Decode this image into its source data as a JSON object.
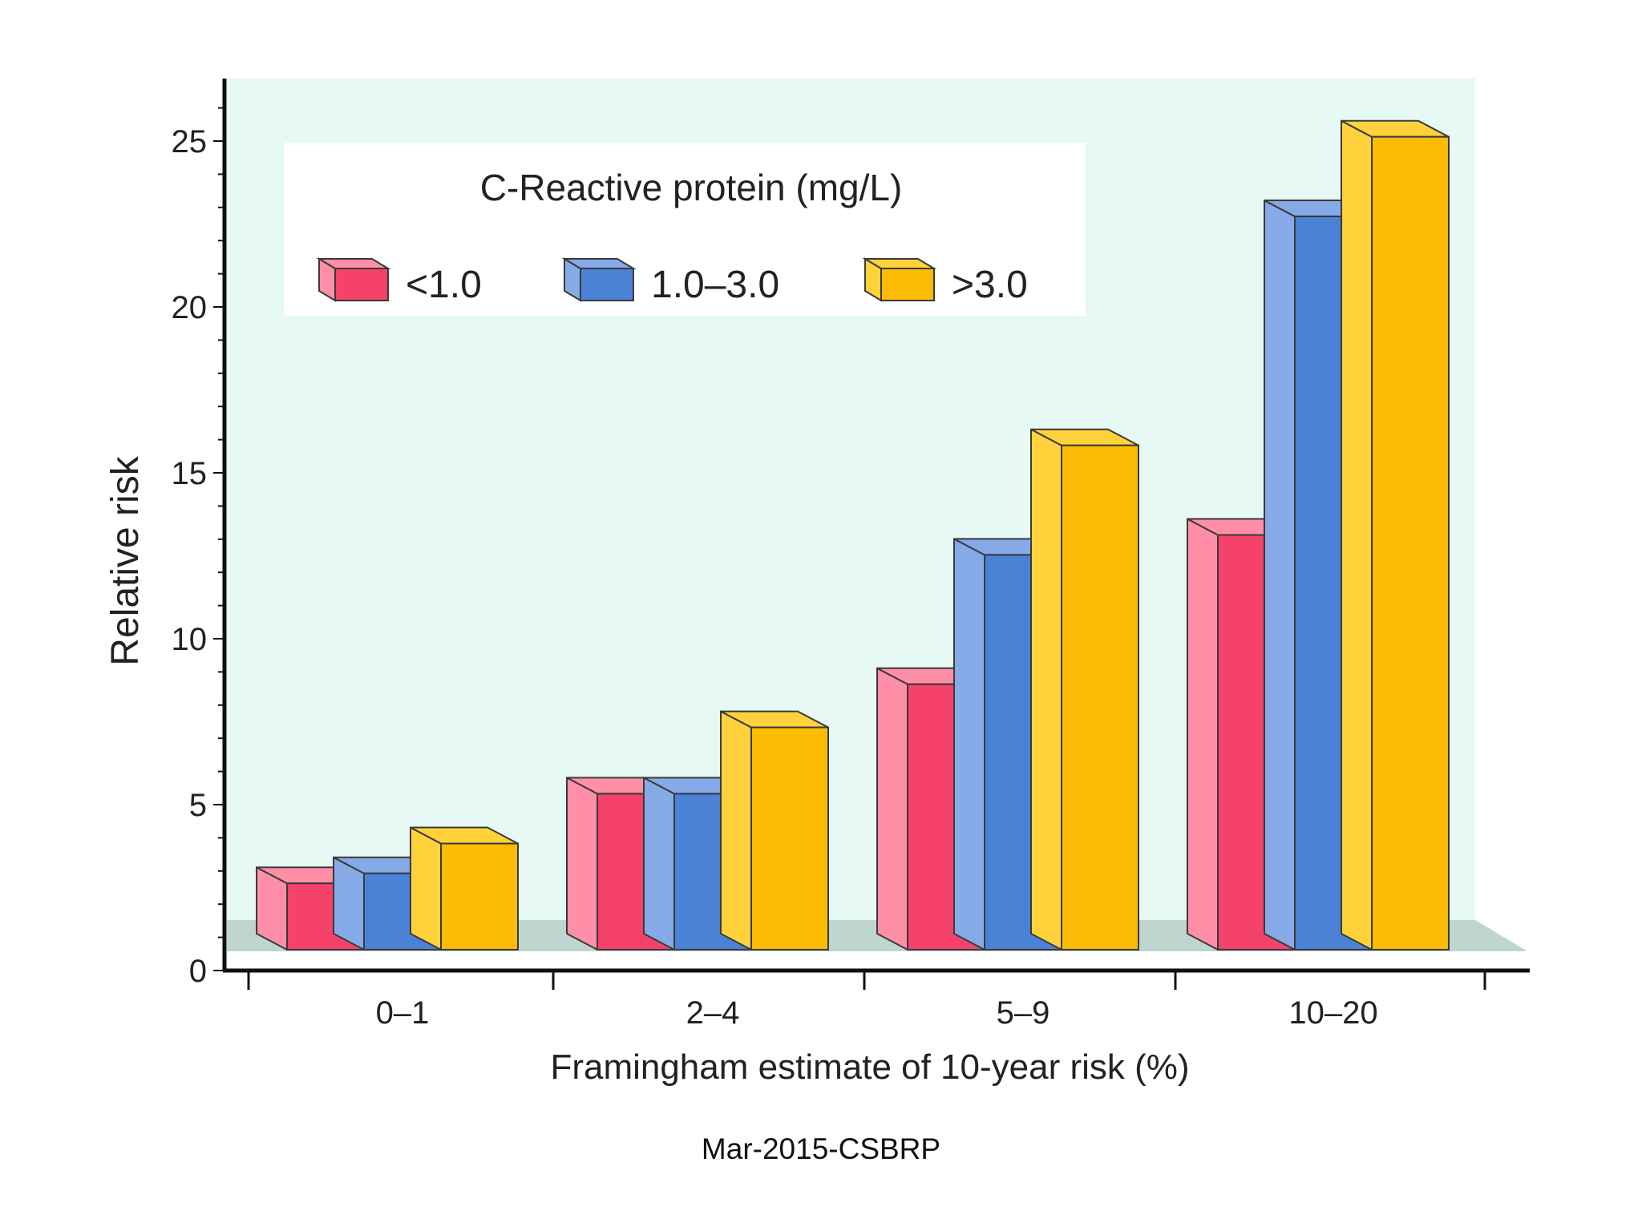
{
  "chart_data": {
    "type": "bar",
    "style": "3d-grouped",
    "categories": [
      "0–1",
      "2–4",
      "5–9",
      "10–20"
    ],
    "series": [
      {
        "name": "<1.0",
        "values": [
          2.0,
          4.7,
          8.0,
          12.5
        ],
        "color": "#f5426b",
        "top_color": "#ff8fa6"
      },
      {
        "name": "1.0–3.0",
        "values": [
          2.3,
          4.7,
          11.9,
          22.1
        ],
        "color": "#4a82d6",
        "top_color": "#86aae8"
      },
      {
        "name": ">3.0",
        "values": [
          3.2,
          6.7,
          15.2,
          24.5
        ],
        "color": "#fcbc05",
        "top_color": "#ffd23c"
      }
    ],
    "legend_title": "C-Reactive protein (mg/L)",
    "legend_position": "top-left",
    "xlabel": "Framingham estimate of 10-year risk (%)",
    "ylabel": "Relative risk",
    "yticks": [
      0,
      5,
      10,
      15,
      20,
      25
    ],
    "ylim": [
      0,
      25
    ],
    "plot_background": "#e6f9f4",
    "floor_color": "#bfd6d0",
    "grid": false
  },
  "footer": {
    "text": "Mar-2015-CSBRP"
  }
}
